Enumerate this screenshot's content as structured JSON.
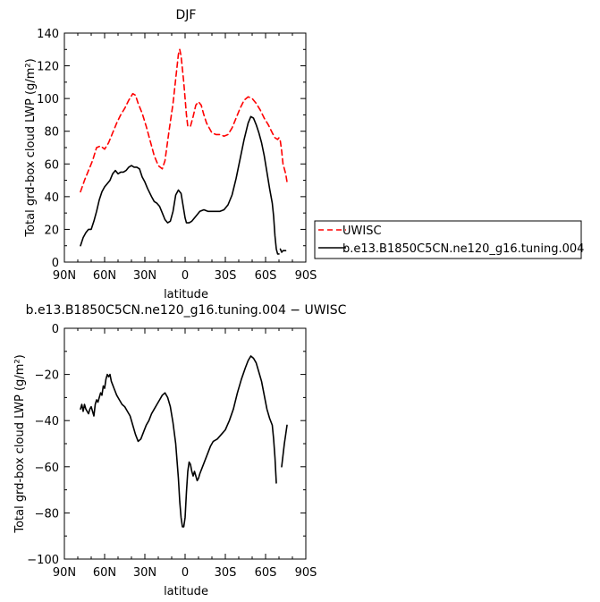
{
  "chart_data": [
    {
      "type": "line",
      "title": "DJF",
      "xlabel": "latitude",
      "ylabel": "Total grd-box cloud LWP (g/m²)",
      "xlim": [
        90,
        -90
      ],
      "ylim": [
        0,
        140
      ],
      "x_ticks": [
        {
          "value": 90,
          "label": "90N"
        },
        {
          "value": 60,
          "label": "60N"
        },
        {
          "value": 30,
          "label": "30N"
        },
        {
          "value": 0,
          "label": "0"
        },
        {
          "value": -30,
          "label": "30S"
        },
        {
          "value": -60,
          "label": "60S"
        },
        {
          "value": -90,
          "label": "90S"
        }
      ],
      "y_ticks": [
        0,
        20,
        40,
        60,
        80,
        100,
        120,
        140
      ],
      "legend_position": "right",
      "series": [
        {
          "name": "UWISC",
          "color": "#ff0000",
          "dash": "dashed",
          "points": [
            [
              78,
              43
            ],
            [
              75,
              50
            ],
            [
              72,
              56
            ],
            [
              69,
              62
            ],
            [
              66,
              70
            ],
            [
              63,
              71
            ],
            [
              60,
              69
            ],
            [
              57,
              73
            ],
            [
              54,
              79
            ],
            [
              51,
              85
            ],
            [
              48,
              90
            ],
            [
              45,
              94
            ],
            [
              42,
              99
            ],
            [
              39,
              103
            ],
            [
              37,
              102
            ],
            [
              35,
              97
            ],
            [
              32,
              91
            ],
            [
              29,
              83
            ],
            [
              26,
              74
            ],
            [
              23,
              65
            ],
            [
              20,
              59
            ],
            [
              17,
              57
            ],
            [
              15,
              62
            ],
            [
              12,
              80
            ],
            [
              9,
              97
            ],
            [
              7,
              112
            ],
            [
              5,
              127
            ],
            [
              4,
              130
            ],
            [
              3,
              126
            ],
            [
              1,
              110
            ],
            [
              -1,
              90
            ],
            [
              -2,
              83
            ],
            [
              -4,
              83
            ],
            [
              -6,
              89
            ],
            [
              -8,
              96
            ],
            [
              -10,
              98
            ],
            [
              -12,
              96
            ],
            [
              -14,
              90
            ],
            [
              -16,
              85
            ],
            [
              -18,
              82
            ],
            [
              -20,
              79
            ],
            [
              -23,
              78
            ],
            [
              -26,
              78
            ],
            [
              -29,
              77
            ],
            [
              -32,
              78
            ],
            [
              -35,
              82
            ],
            [
              -38,
              88
            ],
            [
              -41,
              94
            ],
            [
              -44,
              99
            ],
            [
              -47,
              101
            ],
            [
              -50,
              100
            ],
            [
              -53,
              97
            ],
            [
              -56,
              93
            ],
            [
              -59,
              88
            ],
            [
              -62,
              84
            ],
            [
              -65,
              79
            ],
            [
              -67,
              76
            ],
            [
              -69,
              75
            ],
            [
              -70,
              76
            ],
            [
              -71,
              74
            ],
            [
              -72,
              68
            ],
            [
              -73,
              60
            ],
            [
              -75,
              54
            ],
            [
              -76,
              49
            ]
          ]
        },
        {
          "name": "b.e13.B1850C5CN.ne120_g16.tuning.004",
          "color": "#000000",
          "dash": "solid",
          "points": [
            [
              78,
              10
            ],
            [
              76,
              15
            ],
            [
              74,
              18
            ],
            [
              72,
              20
            ],
            [
              70,
              20
            ],
            [
              68,
              25
            ],
            [
              66,
              31
            ],
            [
              64,
              38
            ],
            [
              62,
              43
            ],
            [
              60,
              46
            ],
            [
              58,
              48
            ],
            [
              56,
              50
            ],
            [
              54,
              54
            ],
            [
              52,
              56
            ],
            [
              50,
              54
            ],
            [
              48,
              55
            ],
            [
              46,
              55
            ],
            [
              44,
              56
            ],
            [
              42,
              58
            ],
            [
              40,
              59
            ],
            [
              38,
              58
            ],
            [
              36,
              58
            ],
            [
              34,
              57
            ],
            [
              32,
              52
            ],
            [
              30,
              49
            ],
            [
              28,
              45
            ],
            [
              25,
              40
            ],
            [
              23,
              37
            ],
            [
              21,
              36
            ],
            [
              19,
              34
            ],
            [
              17,
              30
            ],
            [
              15,
              26
            ],
            [
              13,
              24
            ],
            [
              11,
              25
            ],
            [
              9,
              31
            ],
            [
              7,
              41
            ],
            [
              5,
              44
            ],
            [
              3,
              42
            ],
            [
              1,
              32
            ],
            [
              0,
              27
            ],
            [
              -1,
              24
            ],
            [
              -3,
              24
            ],
            [
              -5,
              25
            ],
            [
              -7,
              27
            ],
            [
              -9,
              29
            ],
            [
              -11,
              31
            ],
            [
              -14,
              32
            ],
            [
              -17,
              31
            ],
            [
              -20,
              31
            ],
            [
              -23,
              31
            ],
            [
              -26,
              31
            ],
            [
              -29,
              32
            ],
            [
              -32,
              35
            ],
            [
              -35,
              41
            ],
            [
              -38,
              51
            ],
            [
              -41,
              63
            ],
            [
              -44,
              75
            ],
            [
              -47,
              85
            ],
            [
              -49,
              89
            ],
            [
              -51,
              88
            ],
            [
              -53,
              84
            ],
            [
              -55,
              79
            ],
            [
              -57,
              73
            ],
            [
              -59,
              65
            ],
            [
              -61,
              55
            ],
            [
              -63,
              45
            ],
            [
              -65,
              36
            ],
            [
              -66,
              28
            ],
            [
              -67,
              16
            ],
            [
              -68,
              8
            ],
            [
              -69,
              5
            ],
            [
              -70,
              5
            ]
          ]
        },
        {
          "name": "",
          "color": "#000000",
          "dash": "solid",
          "points": [
            [
              -71,
              8
            ],
            [
              -72,
              6
            ],
            [
              -73,
              7
            ],
            [
              -74,
              7
            ],
            [
              -75,
              7
            ]
          ]
        }
      ]
    },
    {
      "type": "line",
      "title": "b.e13.B1850C5CN.ne120_g16.tuning.004 − UWISC",
      "xlabel": "latitude",
      "ylabel": "Total grd-box cloud LWP (g/m²)",
      "xlim": [
        90,
        -90
      ],
      "ylim": [
        -100,
        0
      ],
      "x_ticks": [
        {
          "value": 90,
          "label": "90N"
        },
        {
          "value": 60,
          "label": "60N"
        },
        {
          "value": 30,
          "label": "30N"
        },
        {
          "value": 0,
          "label": "0"
        },
        {
          "value": -30,
          "label": "30S"
        },
        {
          "value": -60,
          "label": "60S"
        },
        {
          "value": -90,
          "label": "90S"
        }
      ],
      "y_ticks": [
        -100,
        -80,
        -60,
        -40,
        -20,
        0
      ],
      "series": [
        {
          "name": "",
          "color": "#000000",
          "dash": "solid",
          "points": [
            [
              78,
              -35
            ],
            [
              77,
              -33
            ],
            [
              76,
              -36
            ],
            [
              75,
              -33
            ],
            [
              74,
              -35
            ],
            [
              72,
              -37
            ],
            [
              71,
              -35
            ],
            [
              70,
              -34
            ],
            [
              69,
              -36
            ],
            [
              68,
              -38
            ],
            [
              67,
              -33
            ],
            [
              66,
              -31
            ],
            [
              65,
              -32
            ],
            [
              64,
              -30
            ],
            [
              63,
              -28
            ],
            [
              62,
              -29
            ],
            [
              61,
              -25
            ],
            [
              60,
              -26
            ],
            [
              59,
              -22
            ],
            [
              58,
              -20
            ],
            [
              57,
              -21
            ],
            [
              56,
              -20
            ],
            [
              55,
              -23
            ],
            [
              53,
              -26
            ],
            [
              51,
              -29
            ],
            [
              49,
              -31
            ],
            [
              47,
              -33
            ],
            [
              45,
              -34
            ],
            [
              43,
              -36
            ],
            [
              41,
              -38
            ],
            [
              39,
              -42
            ],
            [
              37,
              -46
            ],
            [
              35,
              -49
            ],
            [
              33,
              -48
            ],
            [
              31,
              -45
            ],
            [
              29,
              -42
            ],
            [
              27,
              -40
            ],
            [
              25,
              -37
            ],
            [
              23,
              -35
            ],
            [
              21,
              -33
            ],
            [
              19,
              -31
            ],
            [
              17,
              -29
            ],
            [
              15,
              -28
            ],
            [
              13,
              -30
            ],
            [
              11,
              -34
            ],
            [
              9,
              -41
            ],
            [
              7,
              -50
            ],
            [
              5,
              -65
            ],
            [
              4,
              -75
            ],
            [
              3,
              -82
            ],
            [
              2,
              -86
            ],
            [
              1,
              -86
            ],
            [
              0,
              -82
            ],
            [
              -1,
              -71
            ],
            [
              -2,
              -62
            ],
            [
              -3,
              -58
            ],
            [
              -4,
              -59
            ],
            [
              -5,
              -62
            ],
            [
              -6,
              -64
            ],
            [
              -7,
              -62
            ],
            [
              -8,
              -64
            ],
            [
              -9,
              -66
            ],
            [
              -10,
              -65
            ],
            [
              -11,
              -63
            ],
            [
              -13,
              -60
            ],
            [
              -15,
              -57
            ],
            [
              -17,
              -54
            ],
            [
              -19,
              -51
            ],
            [
              -21,
              -49
            ],
            [
              -24,
              -48
            ],
            [
              -27,
              -46
            ],
            [
              -30,
              -44
            ],
            [
              -33,
              -40
            ],
            [
              -36,
              -35
            ],
            [
              -39,
              -28
            ],
            [
              -42,
              -22
            ],
            [
              -45,
              -17
            ],
            [
              -47,
              -14
            ],
            [
              -49,
              -12
            ],
            [
              -51,
              -13
            ],
            [
              -53,
              -15
            ],
            [
              -55,
              -19
            ],
            [
              -57,
              -23
            ],
            [
              -59,
              -29
            ],
            [
              -61,
              -35
            ],
            [
              -63,
              -39
            ],
            [
              -65,
              -42
            ],
            [
              -66,
              -48
            ],
            [
              -67,
              -56
            ],
            [
              -68,
              -67
            ]
          ]
        },
        {
          "name": "",
          "color": "#000000",
          "dash": "solid",
          "points": [
            [
              -72,
              -60
            ],
            [
              -73,
              -55
            ],
            [
              -74,
              -50
            ],
            [
              -75,
              -46
            ],
            [
              -76,
              -42
            ]
          ]
        }
      ]
    }
  ]
}
